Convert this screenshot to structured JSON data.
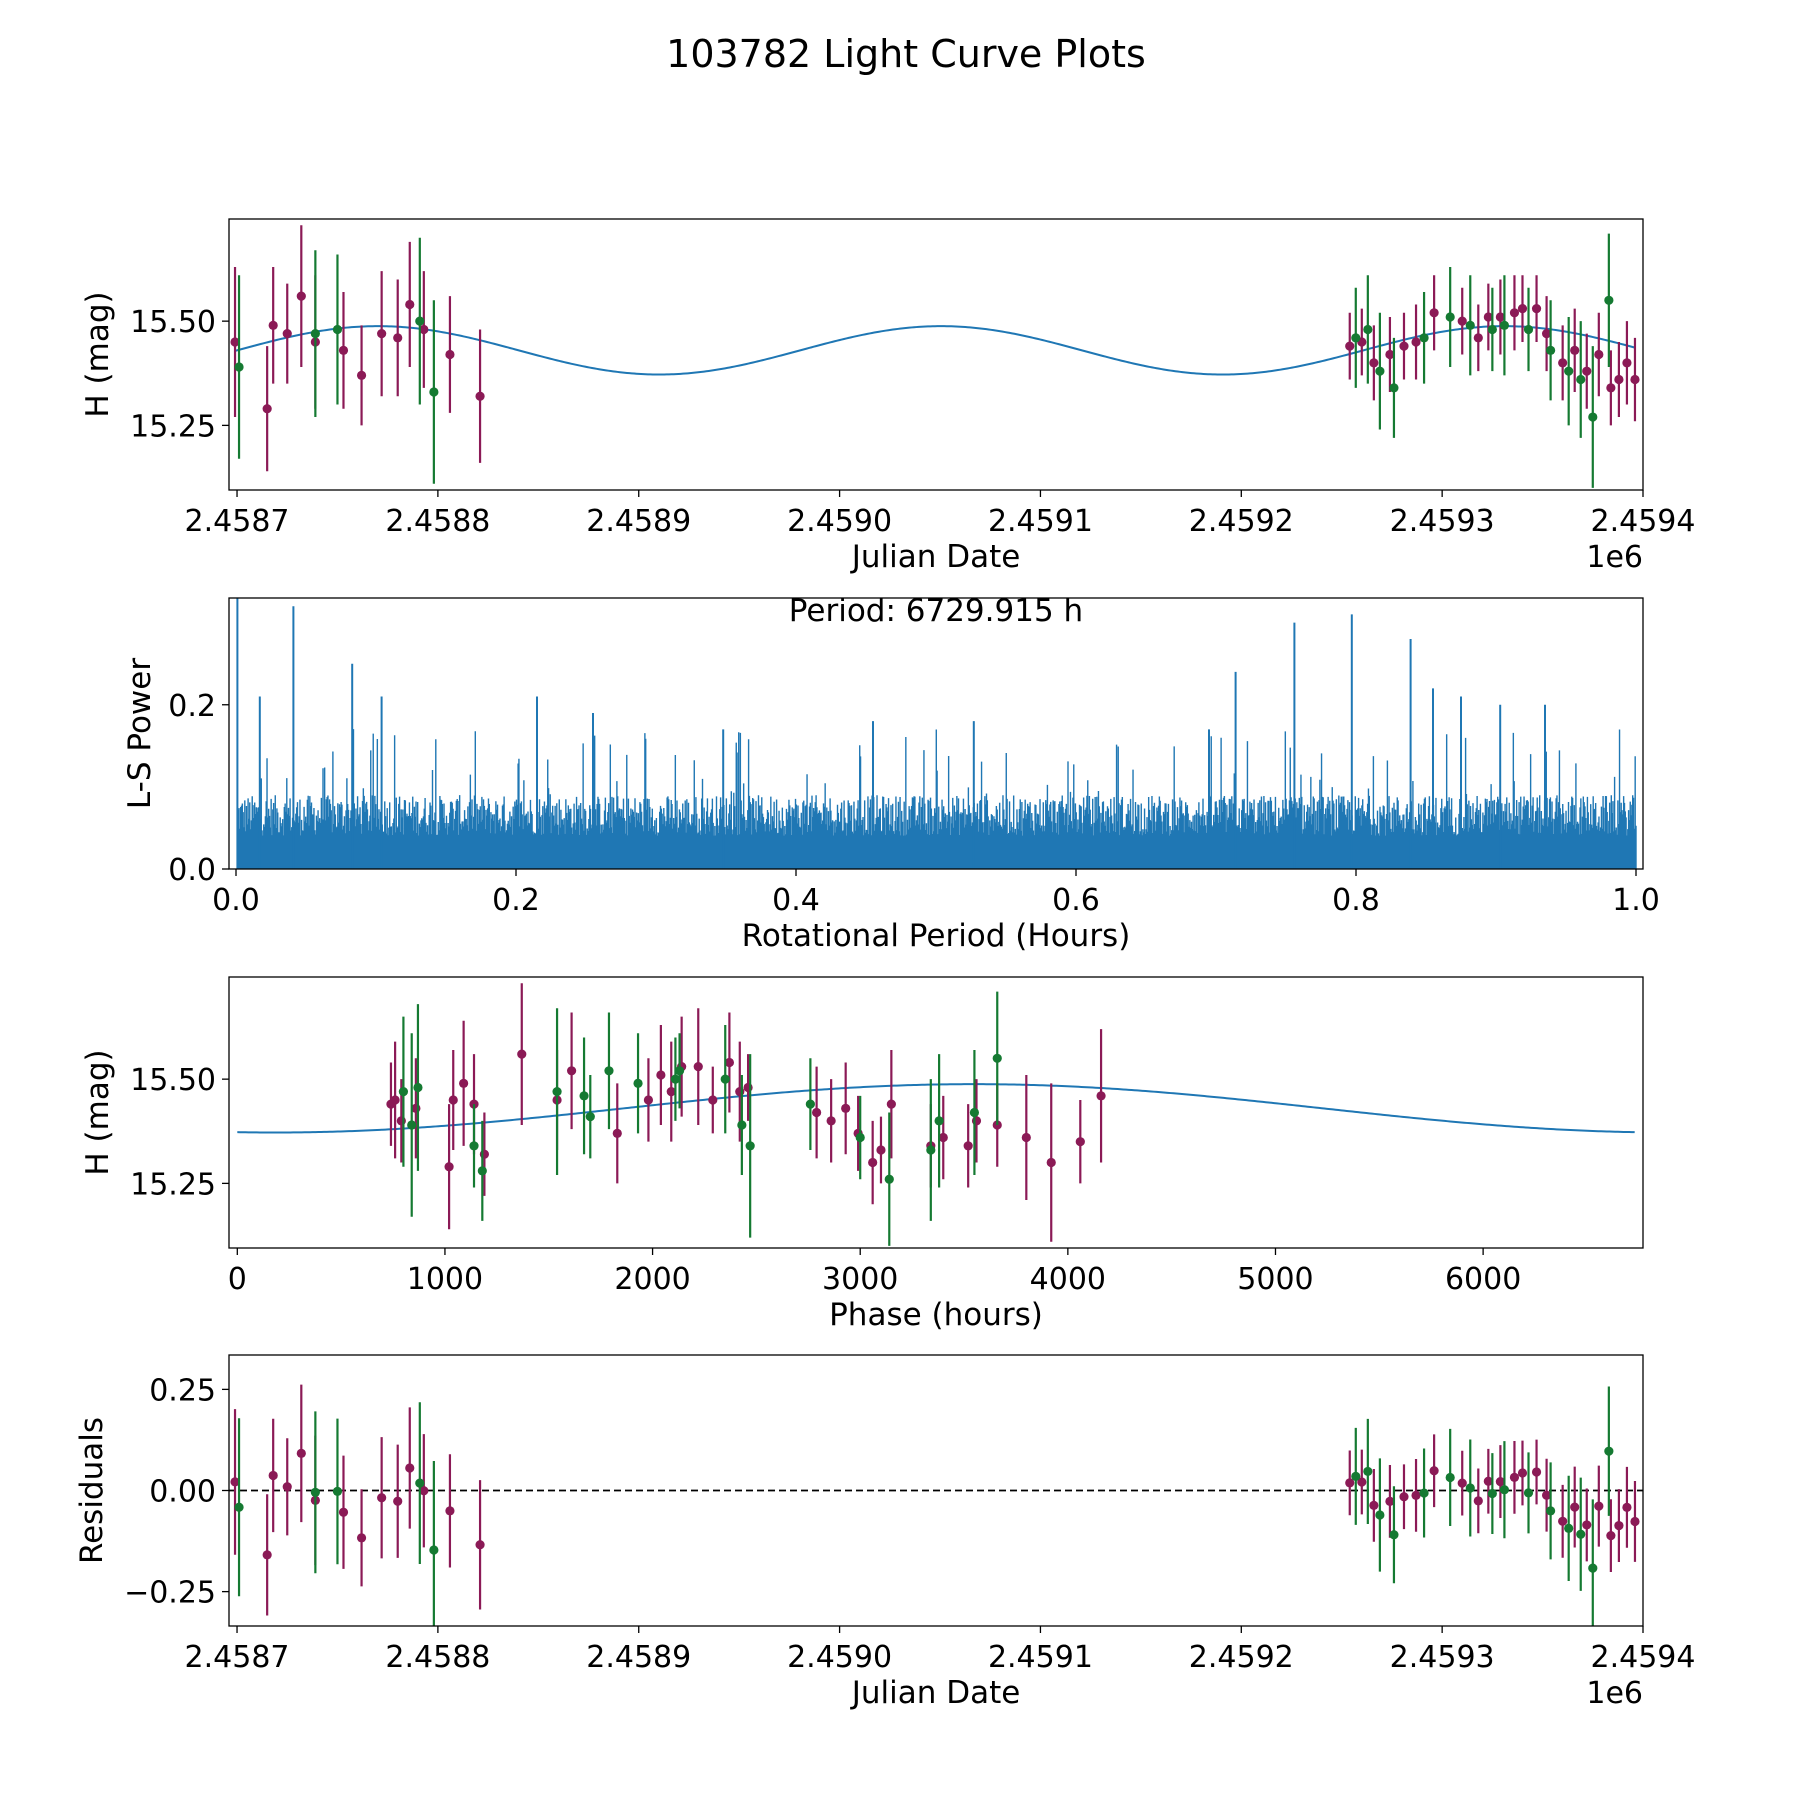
{
  "figure": {
    "title": "103782 Light Curve Plots",
    "colors": {
      "r_band": "#8b1a56",
      "g_band": "#157a32",
      "model": "#1f77b4",
      "axes": "#000000"
    }
  },
  "chart_data": [
    {
      "id": "lightcurve",
      "type": "scatter",
      "xlabel": "Julian Date",
      "ylabel": "H (mag)",
      "xlim": [
        2458696,
        2459400
      ],
      "ylim": [
        15.095,
        15.745
      ],
      "xticks": [
        2458700,
        2458800,
        2458900,
        2459000,
        2459100,
        2459200,
        2459300,
        2459400
      ],
      "xtick_labels": [
        "2.4587",
        "2.4588",
        "2.4589",
        "2.4590",
        "2.4591",
        "2.4592",
        "2.4593",
        "2.4594"
      ],
      "offset_label": "1e6",
      "yticks": [
        15.25,
        15.5
      ],
      "ytick_labels": [
        "15.25",
        "15.50"
      ],
      "model": {
        "mean": 15.43,
        "amplitude": 0.058,
        "period_days": 280.41,
        "phase0_days": 2458700
      },
      "series": [
        {
          "name": "r",
          "color": "#8b1a56",
          "points": [
            [
              2458699,
              15.45,
              0.18
            ],
            [
              2458715,
              15.29,
              0.15
            ],
            [
              2458718,
              15.49,
              0.14
            ],
            [
              2458725,
              15.47,
              0.12
            ],
            [
              2458732,
              15.56,
              0.17
            ],
            [
              2458739,
              15.45,
              0.16
            ],
            [
              2458753,
              15.43,
              0.14
            ],
            [
              2458762,
              15.37,
              0.12
            ],
            [
              2458772,
              15.47,
              0.15
            ],
            [
              2458780,
              15.46,
              0.14
            ],
            [
              2458786,
              15.54,
              0.15
            ],
            [
              2458793,
              15.48,
              0.14
            ],
            [
              2458806,
              15.42,
              0.14
            ],
            [
              2458821,
              15.32,
              0.16
            ],
            [
              2459254,
              15.44,
              0.08
            ],
            [
              2459260,
              15.45,
              0.08
            ],
            [
              2459266,
              15.4,
              0.09
            ],
            [
              2459274,
              15.42,
              0.09
            ],
            [
              2459281,
              15.44,
              0.08
            ],
            [
              2459287,
              15.45,
              0.09
            ],
            [
              2459296,
              15.52,
              0.09
            ],
            [
              2459310,
              15.5,
              0.08
            ],
            [
              2459318,
              15.46,
              0.08
            ],
            [
              2459323,
              15.51,
              0.08
            ],
            [
              2459329,
              15.51,
              0.09
            ],
            [
              2459336,
              15.52,
              0.09
            ],
            [
              2459340,
              15.53,
              0.08
            ],
            [
              2459347,
              15.53,
              0.08
            ],
            [
              2459352,
              15.47,
              0.09
            ],
            [
              2459360,
              15.4,
              0.09
            ],
            [
              2459366,
              15.43,
              0.1
            ],
            [
              2459372,
              15.38,
              0.09
            ],
            [
              2459378,
              15.42,
              0.1
            ],
            [
              2459384,
              15.34,
              0.09
            ],
            [
              2459388,
              15.36,
              0.09
            ],
            [
              2459392,
              15.4,
              0.1
            ],
            [
              2459396,
              15.36,
              0.1
            ]
          ]
        },
        {
          "name": "g",
          "color": "#157a32",
          "points": [
            [
              2458701,
              15.39,
              0.22
            ],
            [
              2458739,
              15.47,
              0.2
            ],
            [
              2458750,
              15.48,
              0.18
            ],
            [
              2458791,
              15.5,
              0.2
            ],
            [
              2458798,
              15.33,
              0.22
            ],
            [
              2459257,
              15.46,
              0.12
            ],
            [
              2459263,
              15.48,
              0.13
            ],
            [
              2459269,
              15.38,
              0.14
            ],
            [
              2459276,
              15.34,
              0.12
            ],
            [
              2459291,
              15.46,
              0.11
            ],
            [
              2459304,
              15.51,
              0.12
            ],
            [
              2459314,
              15.49,
              0.12
            ],
            [
              2459325,
              15.48,
              0.1
            ],
            [
              2459331,
              15.49,
              0.12
            ],
            [
              2459343,
              15.48,
              0.1
            ],
            [
              2459354,
              15.43,
              0.12
            ],
            [
              2459363,
              15.38,
              0.13
            ],
            [
              2459369,
              15.36,
              0.14
            ],
            [
              2459375,
              15.27,
              0.17
            ],
            [
              2459383,
              15.55,
              0.16
            ]
          ]
        }
      ]
    },
    {
      "id": "periodogram",
      "type": "line",
      "xlabel": "Rotational Period (Hours)",
      "ylabel": "L-S Power",
      "xlim": [
        -0.005,
        1.005
      ],
      "ylim": [
        0,
        0.33
      ],
      "xticks": [
        0.0,
        0.2,
        0.4,
        0.6,
        0.8,
        1.0
      ],
      "xtick_labels": [
        "0.0",
        "0.2",
        "0.4",
        "0.6",
        "0.8",
        "1.0"
      ],
      "yticks": [
        0.0,
        0.2
      ],
      "ytick_labels": [
        "0.0",
        "0.2"
      ],
      "annotation": "Period: 6729.915 h",
      "n_samples": 1700,
      "baseline_power": 0.09,
      "peaks": [
        [
          0.001,
          0.33
        ],
        [
          0.041,
          0.32
        ],
        [
          0.017,
          0.21
        ],
        [
          0.083,
          0.25
        ],
        [
          0.104,
          0.21
        ],
        [
          0.215,
          0.21
        ],
        [
          0.255,
          0.19
        ],
        [
          0.348,
          0.17
        ],
        [
          0.455,
          0.18
        ],
        [
          0.527,
          0.18
        ],
        [
          0.695,
          0.17
        ],
        [
          0.714,
          0.24
        ],
        [
          0.756,
          0.3
        ],
        [
          0.797,
          0.31
        ],
        [
          0.839,
          0.28
        ],
        [
          0.855,
          0.22
        ],
        [
          0.875,
          0.21
        ],
        [
          0.903,
          0.2
        ],
        [
          0.935,
          0.2
        ]
      ]
    },
    {
      "id": "phased",
      "type": "scatter",
      "xlabel": "Phase (hours)",
      "ylabel": "H (mag)",
      "xlim": [
        -40,
        6770
      ],
      "ylim": [
        15.095,
        15.745
      ],
      "xticks": [
        0,
        1000,
        2000,
        3000,
        4000,
        5000,
        6000
      ],
      "xtick_labels": [
        "0",
        "1000",
        "2000",
        "3000",
        "4000",
        "5000",
        "6000"
      ],
      "yticks": [
        15.25,
        15.5
      ],
      "ytick_labels": [
        "15.25",
        "15.50"
      ],
      "model": {
        "mean": 15.43,
        "amplitude": 0.058,
        "period_hours": 6729.915,
        "min_phase_hours": 180
      },
      "series": [
        {
          "name": "r",
          "color": "#8b1a56",
          "points": [
            [
              740,
              15.44,
              0.1
            ],
            [
              760,
              15.45,
              0.14
            ],
            [
              790,
              15.4,
              0.1
            ],
            [
              860,
              15.43,
              0.12
            ],
            [
              1020,
              15.29,
              0.15
            ],
            [
              1040,
              15.45,
              0.12
            ],
            [
              1090,
              15.49,
              0.15
            ],
            [
              1140,
              15.44,
              0.12
            ],
            [
              1190,
              15.32,
              0.1
            ],
            [
              1370,
              15.56,
              0.17
            ],
            [
              1540,
              15.45,
              0.12
            ],
            [
              1610,
              15.52,
              0.14
            ],
            [
              1830,
              15.37,
              0.12
            ],
            [
              1980,
              15.45,
              0.1
            ],
            [
              2040,
              15.51,
              0.12
            ],
            [
              2090,
              15.47,
              0.12
            ],
            [
              2140,
              15.53,
              0.12
            ],
            [
              2220,
              15.53,
              0.14
            ],
            [
              2290,
              15.45,
              0.08
            ],
            [
              2370,
              15.54,
              0.12
            ],
            [
              2420,
              15.47,
              0.12
            ],
            [
              2460,
              15.48,
              0.08
            ],
            [
              2790,
              15.42,
              0.11
            ],
            [
              2860,
              15.4,
              0.1
            ],
            [
              2930,
              15.43,
              0.11
            ],
            [
              2990,
              15.37,
              0.09
            ],
            [
              3060,
              15.3,
              0.1
            ],
            [
              3100,
              15.33,
              0.08
            ],
            [
              3150,
              15.44,
              0.13
            ],
            [
              3340,
              15.34,
              0.1
            ],
            [
              3400,
              15.36,
              0.1
            ],
            [
              3520,
              15.34,
              0.1
            ],
            [
              3560,
              15.4,
              0.1
            ],
            [
              3660,
              15.39,
              0.1
            ],
            [
              3800,
              15.36,
              0.15
            ],
            [
              3920,
              15.3,
              0.19
            ],
            [
              4060,
              15.35,
              0.1
            ],
            [
              4160,
              15.46,
              0.16
            ]
          ]
        },
        {
          "name": "g",
          "color": "#157a32",
          "points": [
            [
              800,
              15.47,
              0.18
            ],
            [
              840,
              15.39,
              0.22
            ],
            [
              870,
              15.48,
              0.2
            ],
            [
              1140,
              15.34,
              0.1
            ],
            [
              1180,
              15.28,
              0.12
            ],
            [
              1540,
              15.47,
              0.2
            ],
            [
              1670,
              15.46,
              0.14
            ],
            [
              1700,
              15.41,
              0.1
            ],
            [
              1790,
              15.52,
              0.14
            ],
            [
              1930,
              15.49,
              0.12
            ],
            [
              2110,
              15.5,
              0.1
            ],
            [
              2130,
              15.52,
              0.09
            ],
            [
              2350,
              15.5,
              0.13
            ],
            [
              2430,
              15.39,
              0.12
            ],
            [
              2470,
              15.34,
              0.22
            ],
            [
              2760,
              15.44,
              0.11
            ],
            [
              3000,
              15.36,
              0.1
            ],
            [
              3140,
              15.26,
              0.16
            ],
            [
              3340,
              15.33,
              0.17
            ],
            [
              3380,
              15.4,
              0.16
            ],
            [
              3550,
              15.42,
              0.15
            ],
            [
              3660,
              15.55,
              0.16
            ]
          ]
        }
      ]
    },
    {
      "id": "residuals",
      "type": "scatter",
      "xlabel": "Julian Date",
      "ylabel": "Residuals",
      "xlim": [
        2458696,
        2459400
      ],
      "ylim": [
        -0.335,
        0.335
      ],
      "xticks": [
        2458700,
        2458800,
        2458900,
        2459000,
        2459100,
        2459200,
        2459300,
        2459400
      ],
      "xtick_labels": [
        "2.4587",
        "2.4588",
        "2.4589",
        "2.4590",
        "2.4591",
        "2.4592",
        "2.4593",
        "2.4594"
      ],
      "offset_label": "1e6",
      "yticks": [
        -0.25,
        0.0,
        0.25
      ],
      "ytick_labels": [
        "−0.25",
        "0.00",
        "0.25"
      ],
      "zero_line": true
    }
  ]
}
